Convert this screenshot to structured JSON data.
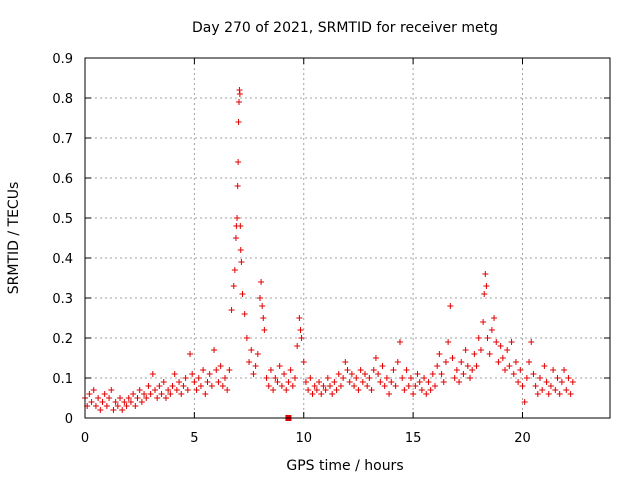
{
  "chart_data": {
    "type": "scatter",
    "title": "Day 270 of 2021, SRMTID for receiver metg",
    "xlabel": "GPS time / hours",
    "ylabel": "SRMTID / TECUs",
    "xlim": [
      0,
      24
    ],
    "ylim": [
      0,
      0.9
    ],
    "xticks": [
      0,
      5,
      10,
      15,
      20
    ],
    "xtick_labels": [
      "0",
      "5",
      "10",
      "15",
      "20"
    ],
    "yticks": [
      0,
      0.1,
      0.2,
      0.3,
      0.4,
      0.5,
      0.6,
      0.7,
      0.8,
      0.9
    ],
    "ytick_labels": [
      "0",
      "0.1",
      "0.2",
      "0.3",
      "0.4",
      "0.5",
      "0.6",
      "0.7",
      "0.8",
      "0.9"
    ],
    "grid": true,
    "marker": "+",
    "color": "#e00000",
    "series": [
      {
        "name": "SRMTID",
        "points": [
          [
            0.0,
            0.05
          ],
          [
            0.1,
            0.03
          ],
          [
            0.2,
            0.06
          ],
          [
            0.3,
            0.04
          ],
          [
            0.4,
            0.07
          ],
          [
            0.5,
            0.03
          ],
          [
            0.6,
            0.05
          ],
          [
            0.7,
            0.02
          ],
          [
            0.8,
            0.04
          ],
          [
            0.9,
            0.06
          ],
          [
            1.0,
            0.03
          ],
          [
            1.1,
            0.05
          ],
          [
            1.2,
            0.07
          ],
          [
            1.3,
            0.02
          ],
          [
            1.4,
            0.04
          ],
          [
            1.5,
            0.03
          ],
          [
            1.6,
            0.05
          ],
          [
            1.7,
            0.02
          ],
          [
            1.8,
            0.04
          ],
          [
            1.9,
            0.03
          ],
          [
            2.0,
            0.05
          ],
          [
            2.1,
            0.04
          ],
          [
            2.2,
            0.06
          ],
          [
            2.3,
            0.03
          ],
          [
            2.4,
            0.05
          ],
          [
            2.5,
            0.07
          ],
          [
            2.6,
            0.04
          ],
          [
            2.7,
            0.06
          ],
          [
            2.8,
            0.05
          ],
          [
            2.9,
            0.08
          ],
          [
            3.0,
            0.06
          ],
          [
            3.1,
            0.11
          ],
          [
            3.2,
            0.07
          ],
          [
            3.3,
            0.05
          ],
          [
            3.4,
            0.08
          ],
          [
            3.5,
            0.06
          ],
          [
            3.6,
            0.09
          ],
          [
            3.7,
            0.05
          ],
          [
            3.8,
            0.07
          ],
          [
            3.9,
            0.06
          ],
          [
            4.0,
            0.08
          ],
          [
            4.1,
            0.11
          ],
          [
            4.2,
            0.07
          ],
          [
            4.3,
            0.09
          ],
          [
            4.4,
            0.06
          ],
          [
            4.5,
            0.08
          ],
          [
            4.6,
            0.1
          ],
          [
            4.7,
            0.07
          ],
          [
            4.8,
            0.16
          ],
          [
            4.9,
            0.11
          ],
          [
            5.0,
            0.09
          ],
          [
            5.1,
            0.07
          ],
          [
            5.2,
            0.1
          ],
          [
            5.3,
            0.08
          ],
          [
            5.4,
            0.12
          ],
          [
            5.5,
            0.06
          ],
          [
            5.6,
            0.09
          ],
          [
            5.7,
            0.11
          ],
          [
            5.8,
            0.08
          ],
          [
            5.9,
            0.17
          ],
          [
            6.0,
            0.12
          ],
          [
            6.1,
            0.09
          ],
          [
            6.2,
            0.13
          ],
          [
            6.3,
            0.08
          ],
          [
            6.4,
            0.1
          ],
          [
            6.5,
            0.07
          ],
          [
            6.6,
            0.12
          ],
          [
            6.7,
            0.27
          ],
          [
            6.8,
            0.33
          ],
          [
            6.85,
            0.37
          ],
          [
            6.9,
            0.45
          ],
          [
            6.92,
            0.48
          ],
          [
            6.95,
            0.5
          ],
          [
            6.98,
            0.58
          ],
          [
            7.0,
            0.64
          ],
          [
            7.02,
            0.74
          ],
          [
            7.04,
            0.79
          ],
          [
            7.06,
            0.82
          ],
          [
            7.08,
            0.81
          ],
          [
            7.1,
            0.48
          ],
          [
            7.12,
            0.42
          ],
          [
            7.15,
            0.39
          ],
          [
            7.2,
            0.31
          ],
          [
            7.3,
            0.26
          ],
          [
            7.4,
            0.2
          ],
          [
            7.5,
            0.14
          ],
          [
            7.6,
            0.17
          ],
          [
            7.7,
            0.11
          ],
          [
            7.8,
            0.13
          ],
          [
            7.9,
            0.16
          ],
          [
            8.0,
            0.3
          ],
          [
            8.05,
            0.34
          ],
          [
            8.1,
            0.28
          ],
          [
            8.15,
            0.25
          ],
          [
            8.2,
            0.22
          ],
          [
            8.3,
            0.1
          ],
          [
            8.4,
            0.08
          ],
          [
            8.5,
            0.12
          ],
          [
            8.6,
            0.07
          ],
          [
            8.7,
            0.1
          ],
          [
            8.8,
            0.09
          ],
          [
            8.9,
            0.13
          ],
          [
            9.0,
            0.08
          ],
          [
            9.1,
            0.11
          ],
          [
            9.2,
            0.07
          ],
          [
            9.3,
            0.09
          ],
          [
            9.4,
            0.12
          ],
          [
            9.5,
            0.08
          ],
          [
            9.6,
            0.1
          ],
          [
            9.7,
            0.18
          ],
          [
            9.8,
            0.25
          ],
          [
            9.85,
            0.22
          ],
          [
            9.9,
            0.2
          ],
          [
            10.0,
            0.14
          ],
          [
            10.1,
            0.09
          ],
          [
            10.2,
            0.07
          ],
          [
            10.3,
            0.1
          ],
          [
            10.4,
            0.06
          ],
          [
            10.5,
            0.08
          ],
          [
            10.6,
            0.07
          ],
          [
            10.7,
            0.09
          ],
          [
            10.8,
            0.06
          ],
          [
            10.9,
            0.08
          ],
          [
            11.0,
            0.07
          ],
          [
            11.1,
            0.1
          ],
          [
            11.2,
            0.08
          ],
          [
            11.3,
            0.06
          ],
          [
            11.4,
            0.09
          ],
          [
            11.5,
            0.07
          ],
          [
            11.6,
            0.11
          ],
          [
            11.7,
            0.08
          ],
          [
            11.8,
            0.1
          ],
          [
            11.9,
            0.14
          ],
          [
            12.0,
            0.12
          ],
          [
            12.1,
            0.09
          ],
          [
            12.2,
            0.11
          ],
          [
            12.3,
            0.08
          ],
          [
            12.4,
            0.1
          ],
          [
            12.5,
            0.07
          ],
          [
            12.6,
            0.12
          ],
          [
            12.7,
            0.09
          ],
          [
            12.8,
            0.11
          ],
          [
            12.9,
            0.08
          ],
          [
            13.0,
            0.1
          ],
          [
            13.1,
            0.07
          ],
          [
            13.2,
            0.12
          ],
          [
            13.3,
            0.15
          ],
          [
            13.4,
            0.11
          ],
          [
            13.5,
            0.09
          ],
          [
            13.6,
            0.13
          ],
          [
            13.7,
            0.08
          ],
          [
            13.8,
            0.1
          ],
          [
            13.9,
            0.06
          ],
          [
            14.0,
            0.09
          ],
          [
            14.1,
            0.12
          ],
          [
            14.2,
            0.08
          ],
          [
            14.3,
            0.14
          ],
          [
            14.4,
            0.19
          ],
          [
            14.5,
            0.1
          ],
          [
            14.6,
            0.07
          ],
          [
            14.7,
            0.12
          ],
          [
            14.8,
            0.08
          ],
          [
            14.9,
            0.1
          ],
          [
            15.0,
            0.06
          ],
          [
            15.1,
            0.08
          ],
          [
            15.2,
            0.11
          ],
          [
            15.3,
            0.09
          ],
          [
            15.4,
            0.07
          ],
          [
            15.5,
            0.1
          ],
          [
            15.6,
            0.06
          ],
          [
            15.7,
            0.09
          ],
          [
            15.8,
            0.07
          ],
          [
            15.9,
            0.11
          ],
          [
            16.0,
            0.08
          ],
          [
            16.1,
            0.13
          ],
          [
            16.2,
            0.16
          ],
          [
            16.3,
            0.11
          ],
          [
            16.4,
            0.09
          ],
          [
            16.5,
            0.14
          ],
          [
            16.6,
            0.19
          ],
          [
            16.7,
            0.28
          ],
          [
            16.8,
            0.15
          ],
          [
            16.9,
            0.1
          ],
          [
            17.0,
            0.12
          ],
          [
            17.1,
            0.09
          ],
          [
            17.2,
            0.14
          ],
          [
            17.3,
            0.11
          ],
          [
            17.4,
            0.17
          ],
          [
            17.5,
            0.13
          ],
          [
            17.6,
            0.1
          ],
          [
            17.7,
            0.12
          ],
          [
            17.8,
            0.16
          ],
          [
            17.9,
            0.13
          ],
          [
            18.0,
            0.2
          ],
          [
            18.1,
            0.17
          ],
          [
            18.2,
            0.24
          ],
          [
            18.25,
            0.31
          ],
          [
            18.3,
            0.36
          ],
          [
            18.35,
            0.33
          ],
          [
            18.4,
            0.2
          ],
          [
            18.5,
            0.16
          ],
          [
            18.6,
            0.22
          ],
          [
            18.7,
            0.25
          ],
          [
            18.8,
            0.19
          ],
          [
            18.9,
            0.14
          ],
          [
            19.0,
            0.18
          ],
          [
            19.1,
            0.15
          ],
          [
            19.2,
            0.12
          ],
          [
            19.3,
            0.17
          ],
          [
            19.4,
            0.13
          ],
          [
            19.5,
            0.19
          ],
          [
            19.6,
            0.11
          ],
          [
            19.7,
            0.14
          ],
          [
            19.8,
            0.09
          ],
          [
            19.9,
            0.12
          ],
          [
            20.0,
            0.08
          ],
          [
            20.1,
            0.04
          ],
          [
            20.2,
            0.1
          ],
          [
            20.3,
            0.14
          ],
          [
            20.4,
            0.19
          ],
          [
            20.5,
            0.11
          ],
          [
            20.6,
            0.08
          ],
          [
            20.7,
            0.06
          ],
          [
            20.8,
            0.1
          ],
          [
            20.9,
            0.07
          ],
          [
            21.0,
            0.13
          ],
          [
            21.1,
            0.09
          ],
          [
            21.2,
            0.06
          ],
          [
            21.3,
            0.08
          ],
          [
            21.4,
            0.12
          ],
          [
            21.5,
            0.07
          ],
          [
            21.6,
            0.1
          ],
          [
            21.7,
            0.06
          ],
          [
            21.8,
            0.09
          ],
          [
            21.9,
            0.12
          ],
          [
            22.0,
            0.07
          ],
          [
            22.1,
            0.1
          ],
          [
            22.2,
            0.06
          ],
          [
            22.3,
            0.09
          ]
        ]
      },
      {
        "name": "marker",
        "marker": "square",
        "points": [
          [
            9.3,
            0.0
          ]
        ]
      }
    ]
  }
}
